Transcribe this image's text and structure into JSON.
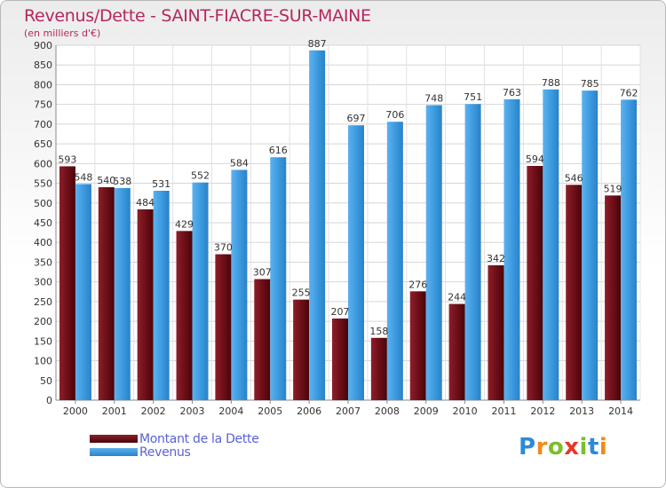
{
  "title": "Revenus/Dette - SAINT-FIACRE-SUR-MAINE",
  "subtitle": "(en milliers d'€)",
  "legend": {
    "dette_label": "Montant de la Dette",
    "revenus_label": "Revenus"
  },
  "logo_text": "Proxiti",
  "colors": {
    "dette": "#6e0f18",
    "revenus": "#3d9be0",
    "title": "#b5275e",
    "legend_text": "#5a61d6"
  },
  "chart_data": {
    "type": "bar",
    "title": "Revenus/Dette - SAINT-FIACRE-SUR-MAINE",
    "ylabel": "(en milliers d'€)",
    "xlabel": "",
    "ylim": [
      0,
      900
    ],
    "ytick_step": 50,
    "grid": true,
    "legend_position": "bottom-left",
    "categories": [
      "2000",
      "2001",
      "2002",
      "2003",
      "2004",
      "2005",
      "2006",
      "2007",
      "2008",
      "2009",
      "2010",
      "2011",
      "2012",
      "2013",
      "2014"
    ],
    "series": [
      {
        "name": "Montant de la Dette",
        "values": [
          593,
          540,
          484,
          429,
          370,
          307,
          255,
          207,
          158,
          276,
          244,
          342,
          594,
          546,
          519
        ]
      },
      {
        "name": "Revenus",
        "values": [
          548,
          538,
          531,
          552,
          584,
          616,
          887,
          697,
          706,
          748,
          751,
          763,
          788,
          785,
          762
        ]
      }
    ]
  }
}
